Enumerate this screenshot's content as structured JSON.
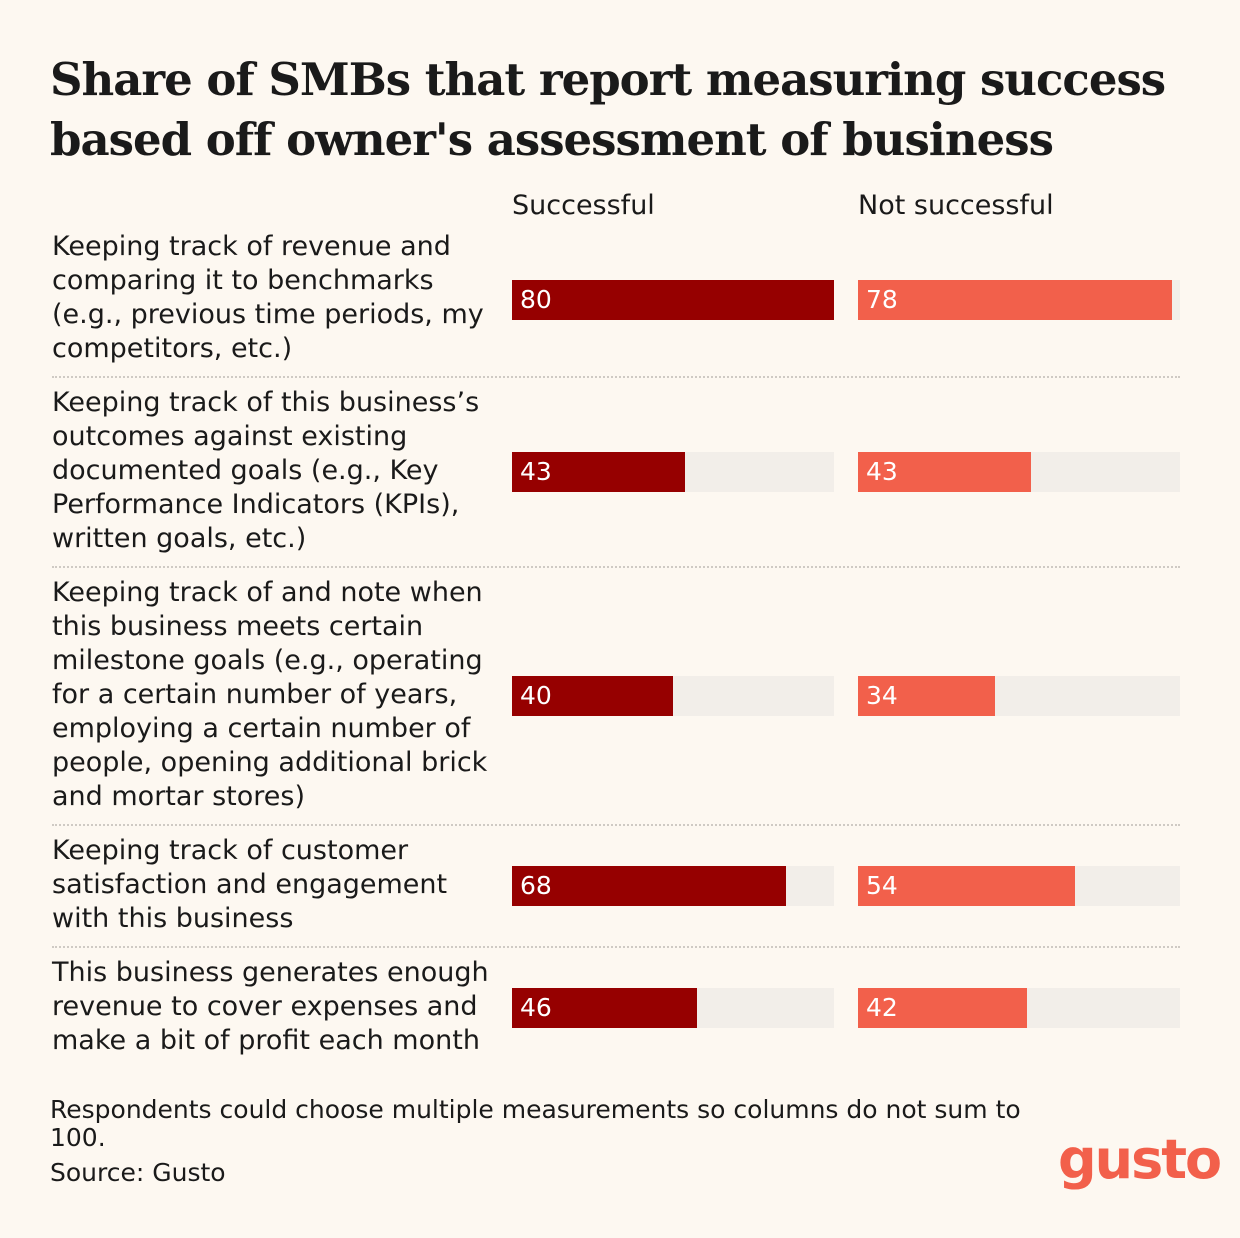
{
  "header": {
    "title": "Share of SMBs that report measuring success based off owner's assessment of business"
  },
  "columns": {
    "successful_label": "Successful",
    "not_successful_label": "Not successful"
  },
  "colors": {
    "successful": "#960000",
    "not_successful": "#f2604b",
    "track": "#f2eee9",
    "background": "#fdf8f1",
    "logo": "#f2604b"
  },
  "footer": {
    "note": "Respondents could choose multiple measurements so columns do not sum to 100.",
    "source": "Source: Gusto"
  },
  "logo": {
    "text": "gusto"
  },
  "chart_data": {
    "type": "bar",
    "orientation": "horizontal",
    "title": "Share of SMBs that report measuring success based off owner's assessment of business",
    "xlim": [
      0,
      80
    ],
    "grid": false,
    "categories": [
      "Keeping track of revenue and comparing it to benchmarks (e.g., previous time periods, my competitors, etc.)",
      "Keeping track of this business’s outcomes against existing documented goals (e.g., Key Performance Indicators (KPIs), written goals, etc.)",
      "Keeping track of and note when this business meets certain milestone goals (e.g., operating for a certain number of years, employing a certain number of people, opening additional brick and mortar stores)",
      "Keeping track of customer satisfaction and engagement with this business",
      "This business generates enough revenue to cover expenses and make a bit of profit each month"
    ],
    "series": [
      {
        "name": "Successful",
        "values": [
          80,
          43,
          40,
          68,
          46
        ]
      },
      {
        "name": "Not successful",
        "values": [
          78,
          43,
          34,
          54,
          42
        ]
      }
    ]
  }
}
